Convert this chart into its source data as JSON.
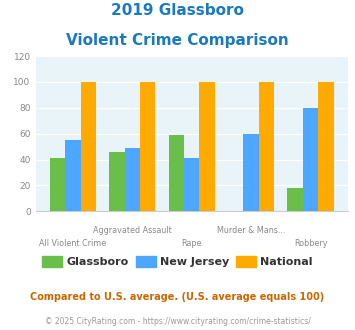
{
  "title_line1": "2019 Glassboro",
  "title_line2": "Violent Crime Comparison",
  "categories": [
    "All Violent Crime",
    "Aggravated Assault",
    "Rape",
    "Murder & Mans...",
    "Robbery"
  ],
  "cat_row1": [
    "",
    "Aggravated Assault",
    "",
    "Murder & Mans...",
    ""
  ],
  "cat_row2": [
    "All Violent Crime",
    "",
    "Rape",
    "",
    "Robbery"
  ],
  "glassboro": [
    41,
    46,
    59,
    0,
    18
  ],
  "new_jersey": [
    55,
    49,
    41,
    60,
    80
  ],
  "national": [
    100,
    100,
    100,
    100,
    100
  ],
  "colors": {
    "glassboro": "#6abf4b",
    "new_jersey": "#4da6ff",
    "national": "#ffaa00"
  },
  "ylim": [
    0,
    120
  ],
  "yticks": [
    0,
    20,
    40,
    60,
    80,
    100,
    120
  ],
  "legend_labels": [
    "Glassboro",
    "New Jersey",
    "National"
  ],
  "footnote1": "Compared to U.S. average. (U.S. average equals 100)",
  "footnote2": "© 2025 CityRating.com - https://www.cityrating.com/crime-statistics/",
  "bg_color": "#e8f4f8",
  "title_color": "#1a7abf",
  "footnote1_color": "#cc6600",
  "footnote2_color": "#999999",
  "tick_label_color": "#888888",
  "legend_text_color": "#333333"
}
